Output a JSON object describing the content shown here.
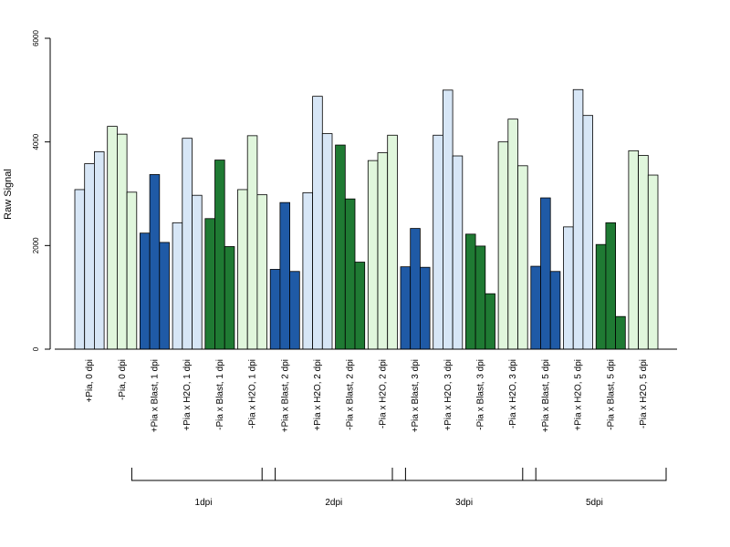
{
  "chart_data": {
    "type": "bar",
    "ylabel": "Raw Signal",
    "ylim": [
      0,
      6000
    ],
    "yticks": [
      0,
      2000,
      4000,
      6000
    ],
    "grid": false,
    "bar_colors": {
      "light_blue": "#d7e6f6",
      "light_green": "#e0f6dc",
      "dark_blue": "#1f5aa6",
      "dark_green": "#1f7a33"
    },
    "categories": [
      "+Pia, 0 dpi",
      "-Pia, 0 dpi",
      "+Pia x Blast, 1 dpi",
      "+Pia x H2O, 1 dpi",
      "-Pia x Blast, 1 dpi",
      "-Pia x H2O, 1 dpi",
      "+Pia x Blast, 2 dpi",
      "+Pia x H2O, 2 dpi",
      "-Pia x Blast, 2 dpi",
      "-Pia x H2O, 2 dpi",
      "+Pia x Blast, 3 dpi",
      "+Pia x H2O, 3 dpi",
      "-Pia x Blast, 3 dpi",
      "-Pia x H2O, 3 dpi",
      "+Pia x Blast, 5 dpi",
      "+Pia x H2O, 5 dpi",
      "-Pia x Blast, 5 dpi",
      "-Pia x H2O, 5 dpi"
    ],
    "category_colors": [
      "light_blue",
      "light_green",
      "dark_blue",
      "light_blue",
      "dark_green",
      "light_green",
      "dark_blue",
      "light_blue",
      "dark_green",
      "light_green",
      "dark_blue",
      "light_blue",
      "dark_green",
      "light_green",
      "dark_blue",
      "light_blue",
      "dark_green",
      "light_green"
    ],
    "replicate_values": [
      [
        3080,
        3580,
        3810
      ],
      [
        4300,
        4150,
        3030
      ],
      [
        2240,
        3370,
        2060
      ],
      [
        2440,
        4070,
        2970
      ],
      [
        2520,
        3650,
        1980
      ],
      [
        3080,
        4120,
        2980
      ],
      [
        1540,
        2830,
        1500
      ],
      [
        3020,
        4880,
        4160
      ],
      [
        3940,
        2900,
        1680
      ],
      [
        3640,
        3790,
        4130
      ],
      [
        1590,
        2330,
        1580
      ],
      [
        4130,
        5000,
        3730
      ],
      [
        2220,
        1990,
        1070
      ],
      [
        4000,
        4440,
        3540
      ],
      [
        1600,
        2920,
        1500
      ],
      [
        2360,
        5010,
        4510
      ],
      [
        2020,
        2440,
        630
      ],
      [
        3830,
        3740,
        3360
      ]
    ],
    "groups": [
      {
        "label": "1dpi",
        "first": 2,
        "last": 5
      },
      {
        "label": "2dpi",
        "first": 6,
        "last": 9
      },
      {
        "label": "3dpi",
        "first": 10,
        "last": 13
      },
      {
        "label": "5dpi",
        "first": 14,
        "last": 17
      }
    ]
  }
}
